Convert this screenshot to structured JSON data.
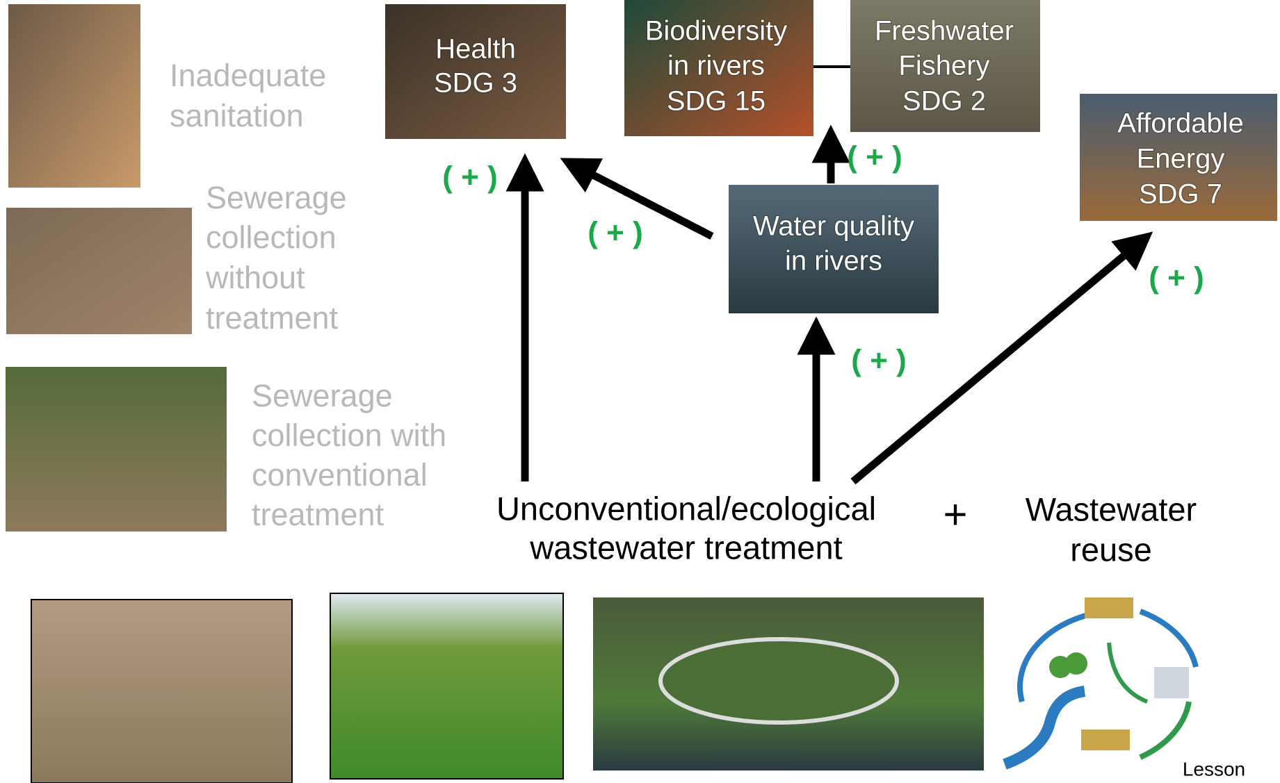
{
  "approaches": [
    {
      "lines": [
        "Inadequate",
        "sanitation"
      ]
    },
    {
      "lines": [
        "Sewerage",
        "collection",
        "without",
        "treatment"
      ]
    },
    {
      "lines": [
        "Sewerage",
        "collection with",
        "conventional",
        "treatment"
      ]
    }
  ],
  "outcomes": [
    {
      "lines": [
        "Health",
        "SDG 3"
      ]
    },
    {
      "lines": [
        "Biodiversity",
        "in rivers",
        "SDG 15"
      ]
    },
    {
      "lines": [
        "Freshwater",
        "Fishery",
        "SDG 2"
      ]
    },
    {
      "lines": [
        "Affordable",
        "Energy",
        "SDG 7"
      ]
    },
    {
      "lines": [
        "Water quality",
        "in rivers"
      ]
    }
  ],
  "effect_label": "( + )",
  "solution": {
    "lines": [
      "Unconventional/ecological",
      "wastewater treatment"
    ]
  },
  "combine": "+",
  "reuse": {
    "lines": [
      "Wastewater",
      "reuse"
    ]
  },
  "footer": "Lesson"
}
